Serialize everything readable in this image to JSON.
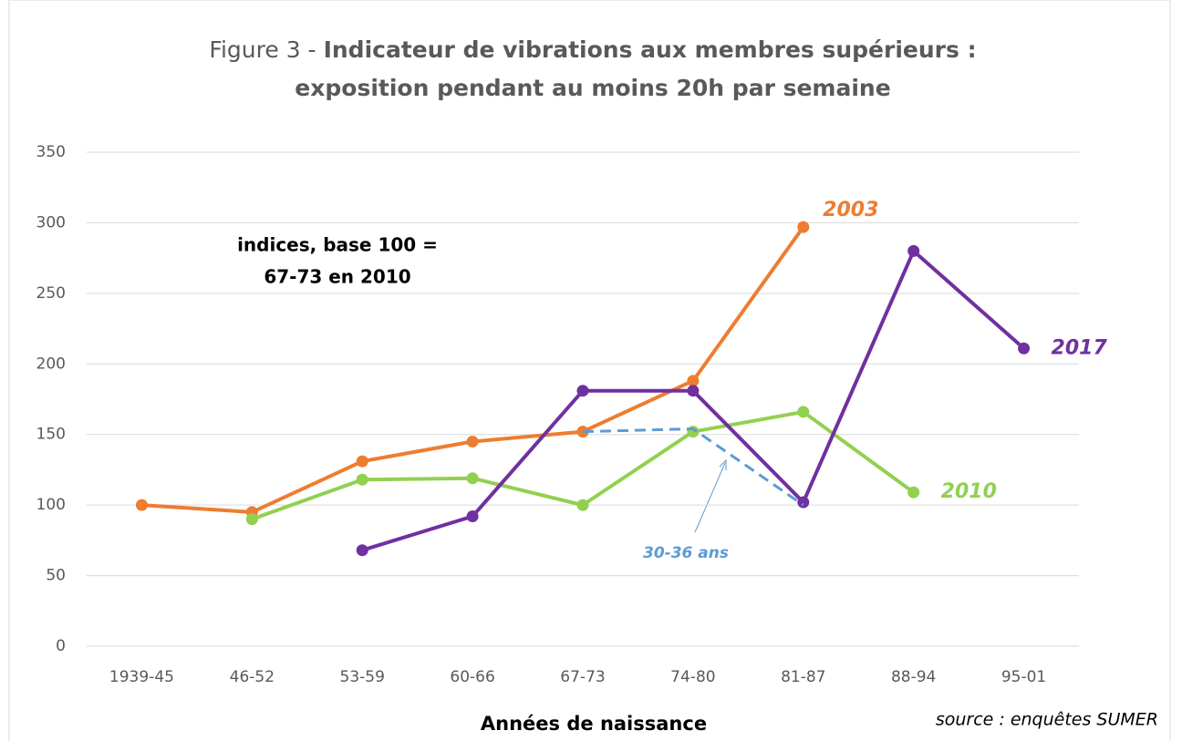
{
  "chart_data": {
    "type": "line",
    "title": {
      "prefix": "Figure 3 -",
      "main": "Indicateur de vibrations aux membres supérieurs :",
      "line2": "exposition pendant au moins 20h par semaine"
    },
    "x_label": "Années de naissance",
    "source": "source : enquêtes SUMER",
    "annotation": [
      "indices, base 100 =",
      "67-73 en 2010"
    ],
    "categories": [
      "1939-45",
      "46-52",
      "53-59",
      "60-66",
      "67-73",
      "74-80",
      "81-87",
      "88-94",
      "95-01"
    ],
    "series": [
      {
        "name": "2003",
        "color": "#ed7d31",
        "markers": true,
        "dashed": false,
        "values": [
          100,
          95,
          131,
          145,
          152,
          188,
          297,
          null,
          null
        ]
      },
      {
        "name": "2010",
        "color": "#92d050",
        "markers": true,
        "dashed": false,
        "values": [
          null,
          90,
          118,
          119,
          100,
          152,
          166,
          109,
          null
        ]
      },
      {
        "name": "2017",
        "color": "#7030a0",
        "markers": true,
        "dashed": false,
        "values": [
          null,
          null,
          68,
          92,
          181,
          181,
          102,
          280,
          211
        ]
      },
      {
        "name": "30-36 ans",
        "color": "#5b9bd5",
        "markers": false,
        "dashed": true,
        "values": [
          null,
          null,
          null,
          null,
          152,
          154,
          100,
          null,
          null
        ]
      }
    ],
    "ylim": [
      0,
      350
    ],
    "yticks": [
      0,
      50,
      100,
      150,
      200,
      250,
      300,
      350
    ],
    "grid": true
  }
}
